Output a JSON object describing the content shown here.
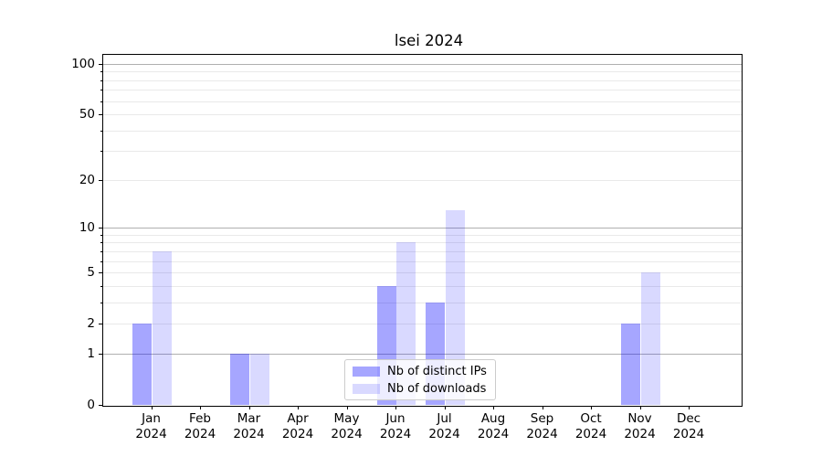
{
  "title": "lsei 2024",
  "chart_data": {
    "type": "bar",
    "title": "lsei 2024",
    "scale": "log1p",
    "ylim": [
      0,
      115
    ],
    "grid": "on",
    "legend_position": "lower center",
    "categories": [
      "Jan",
      "Feb",
      "Mar",
      "Apr",
      "May",
      "Jun",
      "Jul",
      "Aug",
      "Sep",
      "Oct",
      "Nov",
      "Dec"
    ],
    "x_tick_year": "2024",
    "series": [
      {
        "name": "Nb of distinct IPs",
        "color": "rgba(0,0,255,0.35)",
        "values": [
          2,
          0,
          1,
          0,
          0,
          4,
          3,
          0,
          0,
          0,
          2,
          0
        ]
      },
      {
        "name": "Nb of downloads",
        "color": "rgba(0,0,255,0.15)",
        "values": [
          7,
          0,
          1,
          0,
          0,
          8,
          13,
          0,
          0,
          0,
          5,
          0
        ]
      }
    ],
    "yticks": [
      0,
      1,
      2,
      5,
      10,
      20,
      50,
      100
    ],
    "grid_major_values": [
      1,
      10,
      100
    ],
    "grid_minor_values": [
      2,
      3,
      4,
      5,
      6,
      7,
      8,
      9,
      20,
      30,
      40,
      50,
      60,
      70,
      80,
      90
    ],
    "grid_major_color": "#b0b0b0",
    "grid_minor_color": "#e9e9e9",
    "axis_color": "#000000"
  }
}
